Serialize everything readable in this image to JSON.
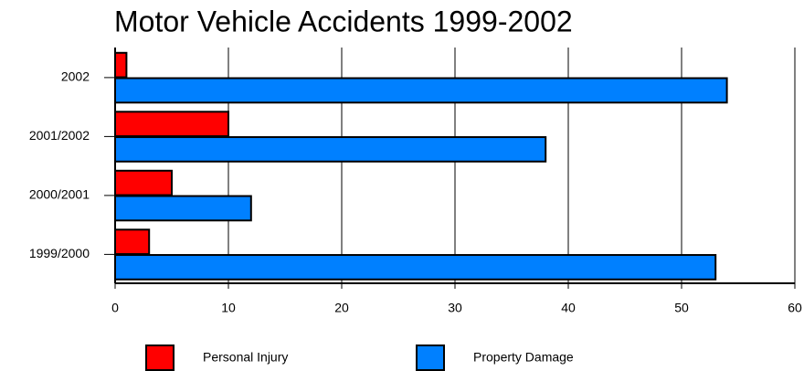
{
  "chart_data": {
    "type": "bar",
    "orientation": "horizontal",
    "title": "Motor Vehicle Accidents 1999-2002",
    "categories": [
      "2002",
      "2001/2002",
      "2000/2001",
      "1999/2000"
    ],
    "series": [
      {
        "name": "Personal Injury",
        "color": "#ff0000",
        "values": [
          1,
          10,
          5,
          3
        ]
      },
      {
        "name": "Property Damage",
        "color": "#0080ff",
        "values": [
          54,
          38,
          12,
          53
        ]
      }
    ],
    "xlim": [
      0,
      60
    ],
    "xticks": [
      0,
      10,
      20,
      30,
      40,
      50,
      60
    ],
    "grid": true,
    "legend": "bottom"
  }
}
